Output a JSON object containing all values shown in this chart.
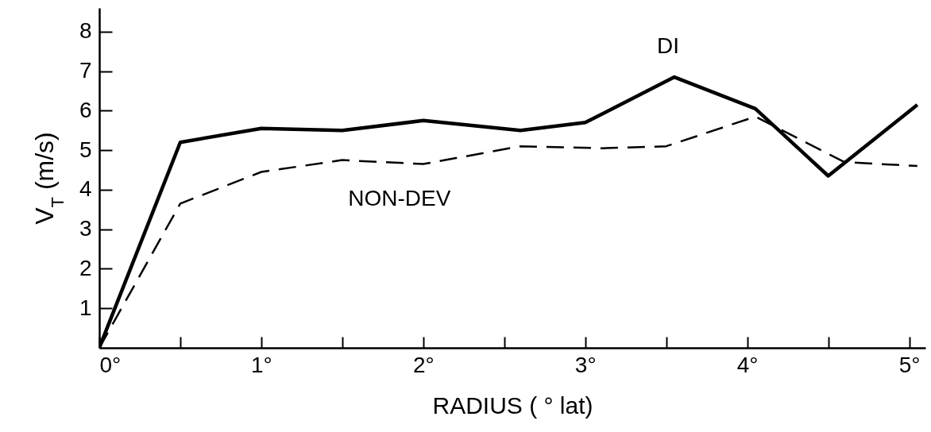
{
  "chart_data": {
    "type": "line",
    "xlabel": "RADIUS ( ° lat)",
    "ylabel": "V$_{T}$  (m/s)",
    "xlim": [
      0,
      5.1
    ],
    "ylim": [
      0,
      8.6
    ],
    "xticks": [
      {
        "value": 0,
        "label": "0°"
      },
      {
        "value": 0.5,
        "label": null
      },
      {
        "value": 1,
        "label": "1°"
      },
      {
        "value": 1.5,
        "label": null
      },
      {
        "value": 2,
        "label": "2°"
      },
      {
        "value": 2.5,
        "label": null
      },
      {
        "value": 3,
        "label": "3°"
      },
      {
        "value": 3.5,
        "label": null
      },
      {
        "value": 4,
        "label": "4°"
      },
      {
        "value": 4.5,
        "label": null
      },
      {
        "value": 5,
        "label": "5°"
      }
    ],
    "yticks": [
      1,
      2,
      3,
      4,
      5,
      6,
      7,
      8
    ],
    "grid": false,
    "legend": false,
    "marker": "none",
    "series": [
      {
        "name": "DI",
        "color": "#000000",
        "line_style": "solid",
        "x": [
          0,
          0.5,
          1,
          1.5,
          2,
          2.6,
          3,
          3.55,
          4.05,
          4.5,
          5.05
        ],
        "values": [
          0,
          5.2,
          5.55,
          5.5,
          5.75,
          5.5,
          5.7,
          6.85,
          6.05,
          4.35,
          6.15
        ]
      },
      {
        "name": "NON-DEV",
        "color": "#000000",
        "line_style": "dashed",
        "x": [
          0,
          0.5,
          1,
          1.5,
          2,
          2.6,
          3.1,
          3.5,
          4.05,
          4.6,
          5.05
        ],
        "values": [
          0,
          3.65,
          4.45,
          4.75,
          4.65,
          5.1,
          5.05,
          5.1,
          5.85,
          4.7,
          4.6
        ]
      }
    ]
  }
}
